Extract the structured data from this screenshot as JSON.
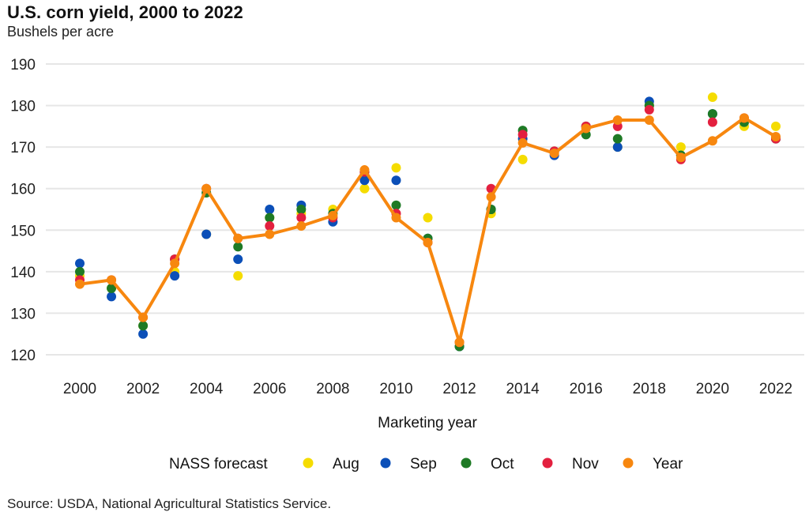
{
  "title": "U.S. corn yield, 2000 to 2022",
  "subtitle": "Bushels per acre",
  "source": "Source: USDA, National Agricultural Statistics Service.",
  "legend": {
    "title": "NASS forecast",
    "placement": "bottom"
  },
  "colors": {
    "Aug": "#f5dc00",
    "Sep": "#0b4fb8",
    "Oct": "#1e7a25",
    "Nov": "#e3203f",
    "Year": "#f7870f",
    "grid": "#e6e6e6"
  },
  "chart_data": {
    "type": "line",
    "title": "U.S. corn yield, 2000 to 2022",
    "subtitle": "Bushels per acre",
    "xlabel": "Marketing year",
    "ylabel": "",
    "x": [
      2000,
      2001,
      2002,
      2003,
      2004,
      2005,
      2006,
      2007,
      2008,
      2009,
      2010,
      2011,
      2012,
      2013,
      2014,
      2015,
      2016,
      2017,
      2018,
      2019,
      2020,
      2021,
      2022
    ],
    "x_ticks": [
      "2000",
      "2002",
      "2004",
      "2006",
      "2008",
      "2010",
      "2012",
      "2014",
      "2016",
      "2018",
      "2020",
      "2022"
    ],
    "y_ticks": [
      "120",
      "130",
      "140",
      "150",
      "160",
      "170",
      "180",
      "190"
    ],
    "ylim": [
      120,
      190
    ],
    "grid": true,
    "series": [
      {
        "name": "Aug",
        "kind": "scatter",
        "values": [
          139,
          136,
          127,
          140,
          149,
          139,
          153,
          154,
          155,
          160,
          165,
          153,
          123,
          154,
          167,
          169,
          175,
          170,
          180,
          170,
          182,
          175,
          175
        ]
      },
      {
        "name": "Sep",
        "kind": "scatter",
        "values": [
          142,
          134,
          125,
          139,
          149,
          143,
          155,
          156,
          152,
          162,
          162,
          148,
          122,
          155,
          172,
          168,
          175,
          170,
          181,
          168,
          178,
          176,
          172
        ]
      },
      {
        "name": "Oct",
        "kind": "scatter",
        "values": [
          140,
          136,
          127,
          143,
          159,
          146,
          153,
          155,
          154,
          164,
          156,
          148,
          122,
          155,
          174,
          169,
          173,
          172,
          180,
          168,
          178,
          176,
          172
        ]
      },
      {
        "name": "Nov",
        "kind": "scatter",
        "values": [
          138,
          138,
          129,
          143,
          160,
          148,
          151,
          153,
          153,
          164,
          154,
          147,
          123,
          160,
          173,
          169,
          175,
          175,
          179,
          167,
          176,
          177,
          172
        ]
      },
      {
        "name": "Year",
        "kind": "line",
        "values": [
          137,
          138,
          129,
          142,
          160,
          148,
          149,
          151,
          153.5,
          164.5,
          153,
          147,
          123,
          158,
          171,
          168.5,
          174.5,
          176.5,
          176.5,
          167.5,
          171.5,
          177,
          172.5
        ]
      }
    ]
  }
}
